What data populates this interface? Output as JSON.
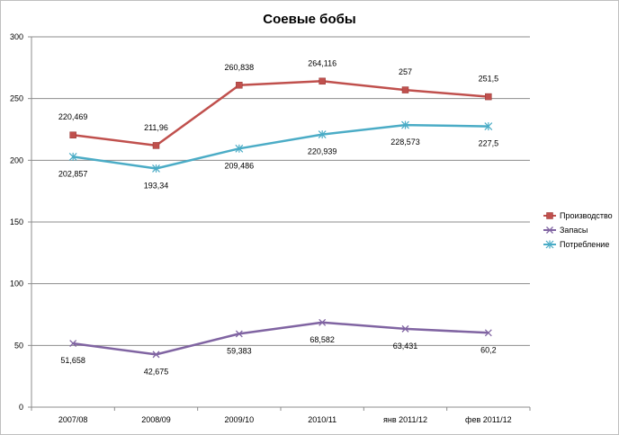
{
  "chart_data": {
    "type": "line",
    "title": "Соевые бобы",
    "xlabel": "",
    "ylabel": "",
    "categories": [
      "2007/08",
      "2008/09",
      "2009/10",
      "2010/11",
      "янв 2011/12",
      "фев 2011/12"
    ],
    "ylim": [
      0,
      300
    ],
    "yticks": [
      0,
      50,
      100,
      150,
      200,
      250,
      300
    ],
    "grid": true,
    "legend_position": "right",
    "series": [
      {
        "name": "Производство",
        "color": "#c0504d",
        "marker": "square",
        "values": [
          220.469,
          211.96,
          260.838,
          264.116,
          257,
          251.5
        ],
        "labels": [
          "220,469",
          "211,96",
          "260,838",
          "264,116",
          "257",
          "251,5"
        ],
        "label_side": "above"
      },
      {
        "name": "Запасы",
        "color": "#8064a2",
        "marker": "x",
        "values": [
          51.658,
          42.675,
          59.383,
          68.582,
          63.431,
          60.2
        ],
        "labels": [
          "51,658",
          "42,675",
          "59,383",
          "68,582",
          "63,431",
          "60,2"
        ],
        "label_side": "below"
      },
      {
        "name": "Потребление",
        "color": "#4bacc6",
        "marker": "star",
        "values": [
          202.857,
          193.34,
          209.486,
          220.939,
          228.573,
          227.5
        ],
        "labels": [
          "202,857",
          "193,34",
          "209,486",
          "220,939",
          "228,573",
          "227,5"
        ],
        "label_side": "below"
      }
    ]
  }
}
